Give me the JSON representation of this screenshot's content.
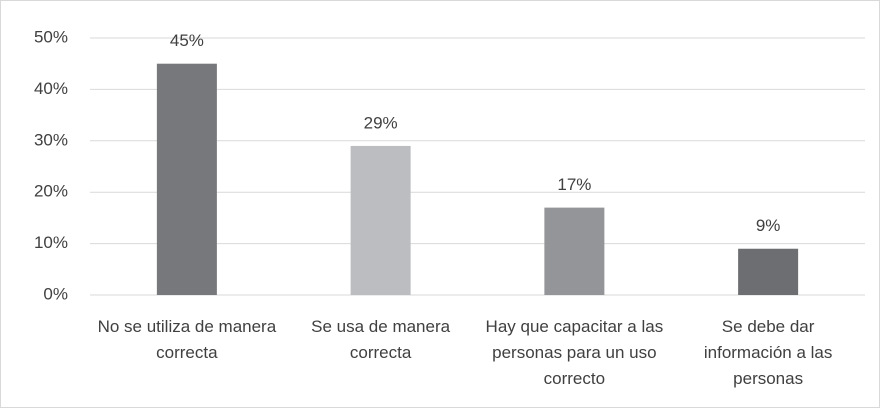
{
  "chart_data": {
    "type": "bar",
    "categories": [
      "No se utiliza de manera correcta",
      "Se usa de manera correcta",
      "Hay que capacitar a las personas para un uso correcto",
      "Se debe dar información a las personas"
    ],
    "values": [
      45,
      29,
      17,
      9
    ],
    "value_labels": [
      "45%",
      "29%",
      "17%",
      "9%"
    ],
    "colors": [
      "#77787b",
      "#bcbdc0",
      "#939598",
      "#6d6e71"
    ],
    "ylim": [
      0,
      50
    ],
    "yticks": [
      {
        "value": 0,
        "label": "0%"
      },
      {
        "value": 10,
        "label": "10%"
      },
      {
        "value": 20,
        "label": "20%"
      },
      {
        "value": 30,
        "label": "30%"
      },
      {
        "value": 40,
        "label": "40%"
      },
      {
        "value": 50,
        "label": "50%"
      }
    ],
    "grid": true
  }
}
